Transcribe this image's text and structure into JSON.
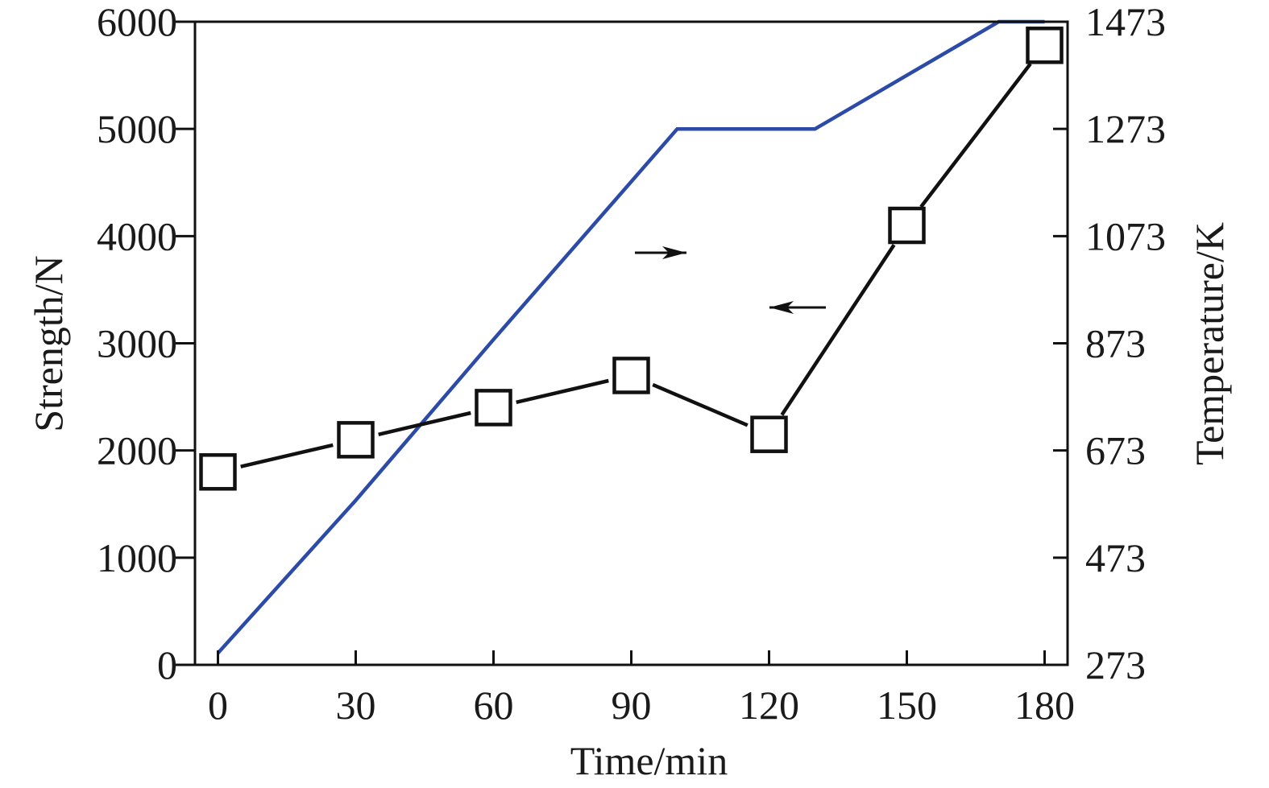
{
  "chart_data": {
    "type": "line",
    "title": "",
    "xlabel": "Time/min",
    "ylabel_left": "Strength/N",
    "ylabel_right": "Temperature/K",
    "x_ticks": [
      0,
      30,
      60,
      90,
      120,
      150,
      180
    ],
    "xlim": [
      -5,
      185
    ],
    "y_left_ticks": [
      0,
      1000,
      2000,
      3000,
      4000,
      5000,
      6000
    ],
    "ylim_left": [
      0,
      6000
    ],
    "y_right_ticks": [
      273,
      473,
      673,
      873,
      1073,
      1273,
      1473
    ],
    "ylim_right": [
      273,
      1473
    ],
    "grid": false,
    "legend": "none",
    "annotations": [
      {
        "name": "arrow-right",
        "direction": "right",
        "meaning": "blue line uses right axis"
      },
      {
        "name": "arrow-left",
        "direction": "left",
        "meaning": "square markers use left axis"
      }
    ],
    "series": [
      {
        "axis": "left",
        "color": "#111111",
        "marker": "square",
        "x": [
          0,
          30,
          60,
          90,
          120,
          150,
          180
        ],
        "y": [
          1800,
          2100,
          2400,
          2700,
          2150,
          4100,
          5780
        ]
      },
      {
        "axis": "right",
        "color": "#2c4aa8",
        "marker": "none",
        "x": [
          0,
          30,
          60,
          100,
          130,
          170,
          180
        ],
        "y": [
          295,
          580,
          880,
          1273,
          1273,
          1473,
          1473
        ]
      }
    ]
  }
}
